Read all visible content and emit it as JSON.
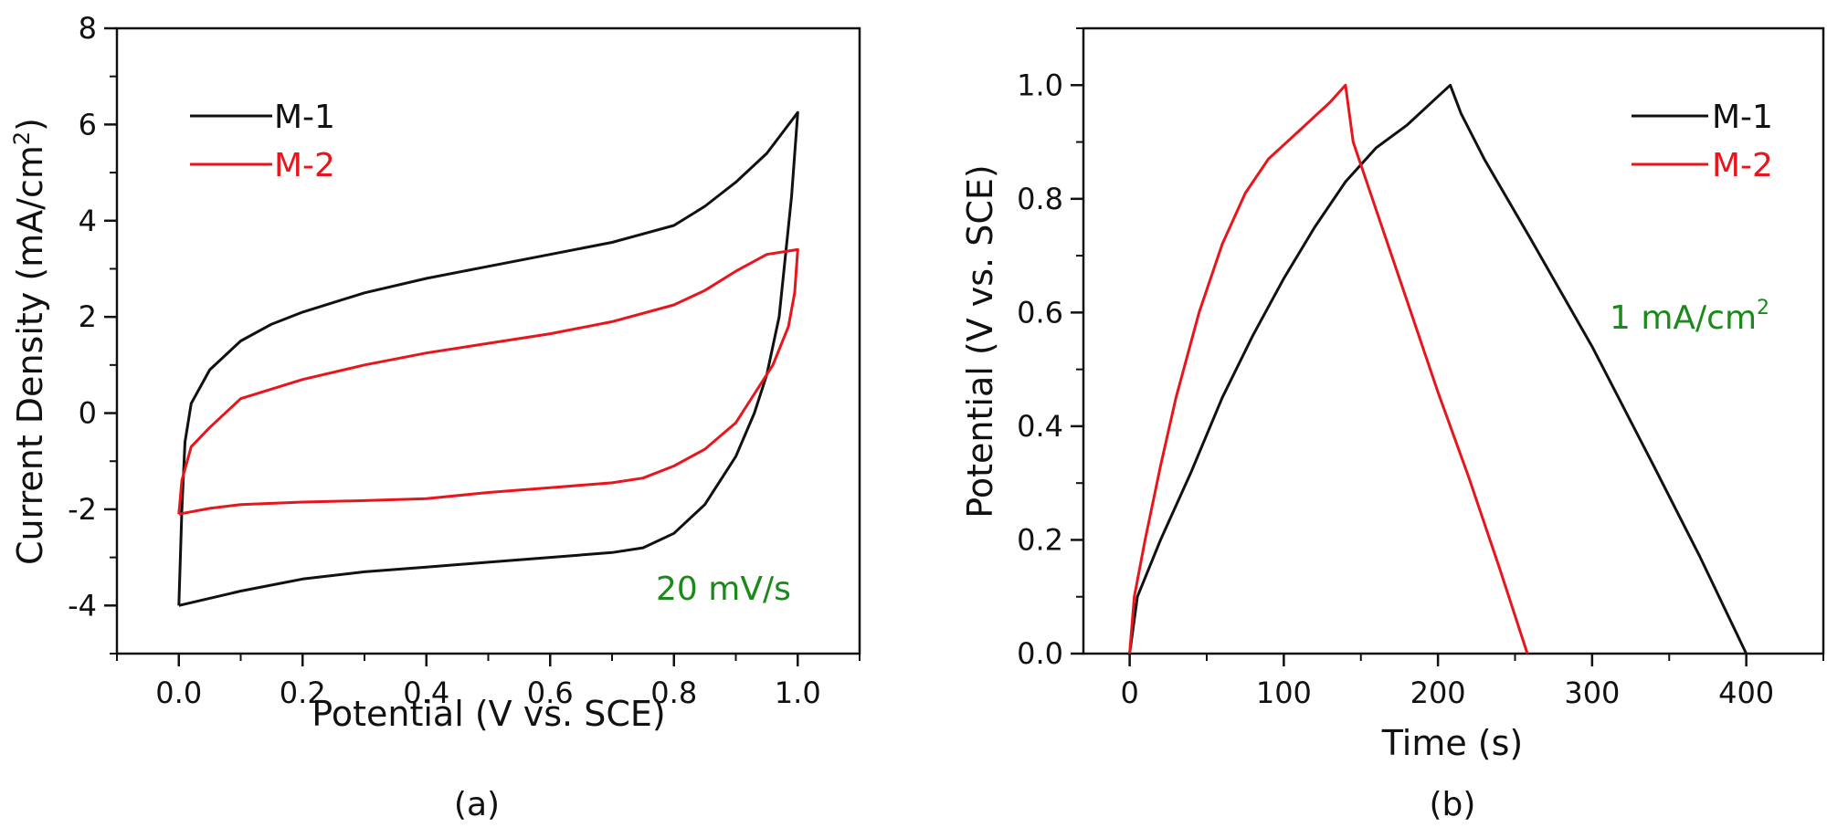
{
  "chart_data": [
    {
      "type": "line",
      "panel_label": "(a)",
      "xlabel": "Potential (V vs. SCE)",
      "ylabel_main": "Current Density (mA/cm",
      "ylabel_sup": "2",
      "ylabel_end": ")",
      "xlim": [
        -0.1,
        1.1
      ],
      "ylim": [
        -5,
        8
      ],
      "xticks": [
        0.0,
        0.2,
        0.4,
        0.6,
        0.8,
        1.0
      ],
      "xtick_labels": [
        "0.0",
        "0.2",
        "0.4",
        "0.6",
        "0.8",
        "1.0"
      ],
      "yticks": [
        -4,
        -2,
        0,
        2,
        4,
        6,
        8
      ],
      "ytick_labels": [
        "-4",
        "-2",
        "0",
        "2",
        "4",
        "6",
        "8"
      ],
      "annotation": "20 mV/s",
      "legend": [
        {
          "name": "M-1",
          "color": "#111111"
        },
        {
          "name": "M-2",
          "color": "#e8161c"
        }
      ],
      "series": [
        {
          "name": "M-1",
          "color": "#111111",
          "points": [
            [
              0.0,
              -4.0
            ],
            [
              0.005,
              -2.0
            ],
            [
              0.01,
              -0.6
            ],
            [
              0.02,
              0.2
            ],
            [
              0.05,
              0.9
            ],
            [
              0.1,
              1.5
            ],
            [
              0.15,
              1.85
            ],
            [
              0.2,
              2.1
            ],
            [
              0.3,
              2.5
            ],
            [
              0.4,
              2.8
            ],
            [
              0.5,
              3.05
            ],
            [
              0.6,
              3.3
            ],
            [
              0.7,
              3.55
            ],
            [
              0.8,
              3.9
            ],
            [
              0.85,
              4.3
            ],
            [
              0.9,
              4.8
            ],
            [
              0.95,
              5.4
            ],
            [
              1.0,
              6.25
            ],
            [
              0.99,
              4.5
            ],
            [
              0.97,
              2.0
            ],
            [
              0.95,
              0.8
            ],
            [
              0.93,
              0.0
            ],
            [
              0.9,
              -0.9
            ],
            [
              0.85,
              -1.9
            ],
            [
              0.8,
              -2.5
            ],
            [
              0.75,
              -2.8
            ],
            [
              0.7,
              -2.9
            ],
            [
              0.6,
              -3.0
            ],
            [
              0.5,
              -3.1
            ],
            [
              0.4,
              -3.2
            ],
            [
              0.3,
              -3.3
            ],
            [
              0.2,
              -3.45
            ],
            [
              0.1,
              -3.7
            ],
            [
              0.05,
              -3.85
            ],
            [
              0.0,
              -4.0
            ]
          ]
        },
        {
          "name": "M-2",
          "color": "#e8161c",
          "points": [
            [
              0.0,
              -2.1
            ],
            [
              0.005,
              -1.4
            ],
            [
              0.02,
              -0.7
            ],
            [
              0.05,
              -0.3
            ],
            [
              0.1,
              0.3
            ],
            [
              0.2,
              0.7
            ],
            [
              0.3,
              1.0
            ],
            [
              0.4,
              1.25
            ],
            [
              0.5,
              1.45
            ],
            [
              0.6,
              1.65
            ],
            [
              0.7,
              1.9
            ],
            [
              0.8,
              2.25
            ],
            [
              0.85,
              2.55
            ],
            [
              0.9,
              2.95
            ],
            [
              0.95,
              3.3
            ],
            [
              1.0,
              3.4
            ],
            [
              0.995,
              2.5
            ],
            [
              0.985,
              1.8
            ],
            [
              0.96,
              1.0
            ],
            [
              0.93,
              0.4
            ],
            [
              0.9,
              -0.2
            ],
            [
              0.85,
              -0.75
            ],
            [
              0.8,
              -1.1
            ],
            [
              0.75,
              -1.35
            ],
            [
              0.7,
              -1.45
            ],
            [
              0.6,
              -1.55
            ],
            [
              0.5,
              -1.65
            ],
            [
              0.4,
              -1.78
            ],
            [
              0.3,
              -1.82
            ],
            [
              0.2,
              -1.85
            ],
            [
              0.1,
              -1.9
            ],
            [
              0.05,
              -1.98
            ],
            [
              0.0,
              -2.1
            ]
          ]
        }
      ]
    },
    {
      "type": "line",
      "panel_label": "(b)",
      "xlabel": "Time (s)",
      "ylabel": "Potential (V vs. SCE)",
      "xlim": [
        -30,
        450
      ],
      "ylim": [
        0,
        1.1
      ],
      "xticks": [
        0,
        100,
        200,
        300,
        400
      ],
      "xtick_labels": [
        "0",
        "100",
        "200",
        "300",
        "400"
      ],
      "yticks": [
        0.0,
        0.2,
        0.4,
        0.6,
        0.8,
        1.0
      ],
      "ytick_labels": [
        "0.0",
        "0.2",
        "0.4",
        "0.6",
        "0.8",
        "1.0"
      ],
      "annotation_main": "1 mA/cm",
      "annotation_sup": "2",
      "legend": [
        {
          "name": "M-1",
          "color": "#111111"
        },
        {
          "name": "M-2",
          "color": "#e8161c"
        }
      ],
      "series": [
        {
          "name": "M-1",
          "color": "#111111",
          "points": [
            [
              0,
              0.0
            ],
            [
              5,
              0.1
            ],
            [
              20,
              0.2
            ],
            [
              40,
              0.32
            ],
            [
              60,
              0.45
            ],
            [
              80,
              0.56
            ],
            [
              100,
              0.66
            ],
            [
              120,
              0.75
            ],
            [
              140,
              0.83
            ],
            [
              160,
              0.89
            ],
            [
              180,
              0.93
            ],
            [
              200,
              0.98
            ],
            [
              208,
              1.0
            ],
            [
              215,
              0.95
            ],
            [
              230,
              0.87
            ],
            [
              260,
              0.73
            ],
            [
              300,
              0.54
            ],
            [
              340,
              0.33
            ],
            [
              370,
              0.17
            ],
            [
              400,
              0.0
            ]
          ]
        },
        {
          "name": "M-2",
          "color": "#e8161c",
          "points": [
            [
              0,
              0.0
            ],
            [
              3,
              0.1
            ],
            [
              10,
              0.2
            ],
            [
              20,
              0.33
            ],
            [
              30,
              0.45
            ],
            [
              45,
              0.6
            ],
            [
              60,
              0.72
            ],
            [
              75,
              0.81
            ],
            [
              90,
              0.87
            ],
            [
              110,
              0.92
            ],
            [
              130,
              0.97
            ],
            [
              140,
              1.0
            ],
            [
              145,
              0.9
            ],
            [
              160,
              0.78
            ],
            [
              180,
              0.62
            ],
            [
              200,
              0.46
            ],
            [
              220,
              0.31
            ],
            [
              240,
              0.15
            ],
            [
              258,
              0.0
            ]
          ]
        }
      ]
    }
  ]
}
